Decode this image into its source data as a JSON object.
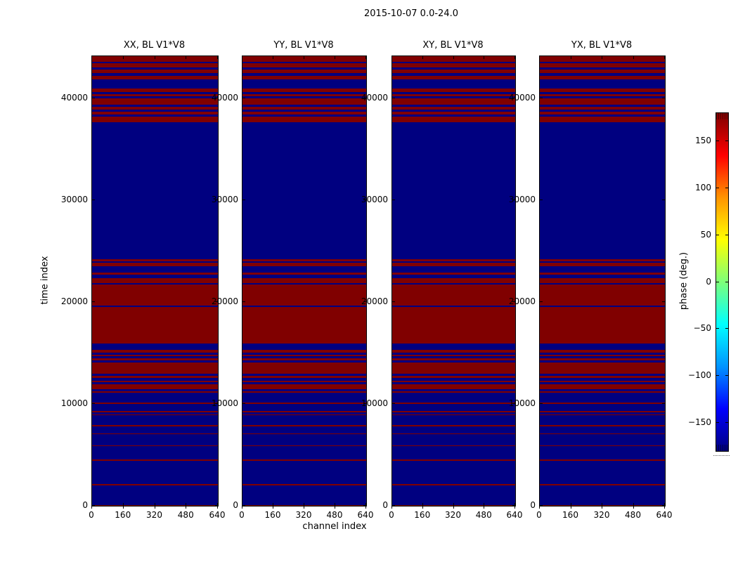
{
  "figure": {
    "suptitle": "2015-10-07 0.0-24.0"
  },
  "chart_data": {
    "type": "heatmap",
    "suptitle": "2015-10-07 0.0-24.0",
    "xlabel": "channel index",
    "ylabel": "time index",
    "panels": [
      {
        "title": "XX, BL V1*V8"
      },
      {
        "title": "YY, BL V1*V8"
      },
      {
        "title": "XY, BL V1*V8"
      },
      {
        "title": "YX, BL V1*V8"
      }
    ],
    "x_ticks": [
      0,
      160,
      320,
      480,
      640
    ],
    "x_lim": [
      0,
      640
    ],
    "y_ticks": [
      0,
      10000,
      20000,
      30000,
      40000
    ],
    "y_lim": [
      0,
      44140
    ],
    "grid": false,
    "colorbar": {
      "label": "phase (deg.)",
      "ticks": [
        150,
        100,
        50,
        0,
        -50,
        -100,
        -150
      ],
      "lim": [
        -180,
        180
      ],
      "colormap": "jet"
    },
    "value_colors": {
      "high_phase_red": "#800000",
      "low_phase_blue": "#000080"
    },
    "red_band_time_ranges": [
      [
        43620,
        44140
      ],
      [
        43020,
        43430
      ],
      [
        42490,
        42840
      ],
      [
        41870,
        42240
      ],
      [
        40650,
        40950
      ],
      [
        40190,
        40450
      ],
      [
        39380,
        40030
      ],
      [
        38880,
        39200
      ],
      [
        38400,
        38680
      ],
      [
        37680,
        38230
      ],
      [
        24030,
        24220
      ],
      [
        23500,
        23870
      ],
      [
        22670,
        22880
      ],
      [
        21890,
        22350
      ],
      [
        19660,
        21730
      ],
      [
        15930,
        19500
      ],
      [
        15050,
        15280
      ],
      [
        14670,
        14820
      ],
      [
        14290,
        14480
      ],
      [
        12980,
        14070
      ],
      [
        12520,
        12750
      ],
      [
        12130,
        12290
      ],
      [
        11440,
        11900
      ],
      [
        11100,
        11260
      ],
      [
        10010,
        10150
      ],
      [
        9180,
        9300
      ],
      [
        8890,
        9000
      ],
      [
        7800,
        7920
      ],
      [
        7000,
        7120
      ],
      [
        5850,
        5960
      ],
      [
        4420,
        4580
      ],
      [
        2000,
        2160
      ],
      [
        0,
        100
      ]
    ]
  }
}
